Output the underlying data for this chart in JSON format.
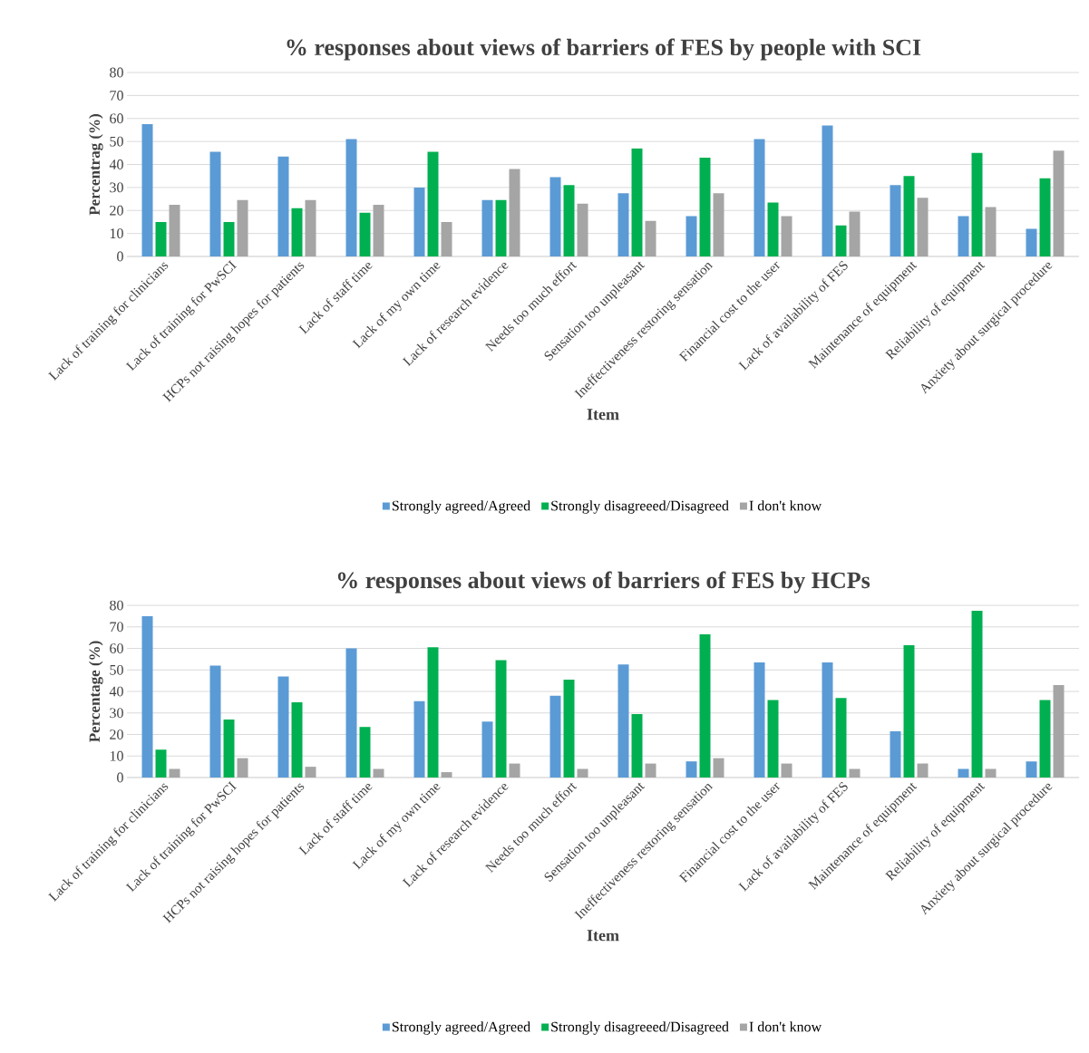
{
  "chart_data": [
    {
      "type": "bar",
      "title": "% responses about views of barriers of FES by people with SCI",
      "xlabel": "Item",
      "ylabel": "Percentrag (%)",
      "categories": [
        "Lack of training for clinicians",
        "Lack of training for PwSCI",
        "HCPs not raising  hopes for patients",
        "Lack of staff time",
        "Lack of my own time",
        "Lack of research evidence",
        "Needs too much effort",
        "Sensation too unpleasant",
        "Ineffectiveness restoring sensation",
        "Financial cost to the user",
        "Lack of availability of FES",
        "Maintenance of equipment",
        "Reliability of equipment",
        "Anxiety about surgical procedure"
      ],
      "series": [
        {
          "name": "Strongly agreed/Agreed",
          "color": "#5b9bd5",
          "values": [
            57.5,
            45.5,
            43.5,
            51,
            30,
            24.5,
            34.5,
            27.5,
            17.5,
            51,
            57,
            31,
            17.5,
            12
          ]
        },
        {
          "name": "Strongly disagreeed/Disagreed",
          "color": "#00b050",
          "values": [
            15,
            15,
            21,
            19,
            45.5,
            24.5,
            31,
            47,
            43,
            23.5,
            13.5,
            35,
            45,
            34
          ]
        },
        {
          "name": "I don't know",
          "color": "#a5a5a5",
          "values": [
            22.5,
            24.5,
            24.5,
            22.5,
            15,
            38,
            23,
            15.5,
            27.5,
            17.5,
            19.5,
            25.5,
            21.5,
            46
          ]
        }
      ],
      "ylim": [
        0,
        80
      ],
      "yticks": [
        0,
        10,
        20,
        30,
        40,
        50,
        60,
        70,
        80
      ],
      "grid": "y",
      "legend": "bottom"
    },
    {
      "type": "bar",
      "title": "% responses about views of barriers of FES by HCPs",
      "xlabel": "Item",
      "ylabel": "Percentage (%)",
      "categories": [
        "Lack of training for clinicians",
        "Lack of training for PwSCI",
        "HCPs not raising  hopes for patients",
        "Lack of staff time",
        "Lack of my own time",
        "Lack of research evidence",
        "Needs too much effort",
        "Sensation too unpleasant",
        "Ineffectiveness restoring sensation",
        "Financial cost to the user",
        "Lack of availability of FES",
        "Maintenance of equipment",
        "Reliability of equipment",
        "Anxiety about surgical procedure"
      ],
      "series": [
        {
          "name": "Strongly agreed/Agreed",
          "color": "#5b9bd5",
          "values": [
            75,
            52,
            47,
            60,
            35.5,
            26,
            38,
            52.5,
            7.5,
            53.5,
            53.5,
            21.5,
            4,
            7.5
          ]
        },
        {
          "name": "Strongly disagreeed/Disagreed",
          "color": "#00b050",
          "values": [
            13,
            27,
            35,
            23.5,
            60.5,
            54.5,
            45.5,
            29.5,
            66.5,
            36,
            37,
            61.5,
            77.5,
            36
          ]
        },
        {
          "name": "I don't know",
          "color": "#a5a5a5",
          "values": [
            4,
            9,
            5,
            4,
            2.5,
            6.5,
            4,
            6.5,
            9,
            6.5,
            4,
            6.5,
            4,
            43
          ]
        }
      ],
      "ylim": [
        0,
        80
      ],
      "yticks": [
        0,
        10,
        20,
        30,
        40,
        50,
        60,
        70,
        80
      ],
      "grid": "y",
      "legend": "bottom"
    }
  ]
}
